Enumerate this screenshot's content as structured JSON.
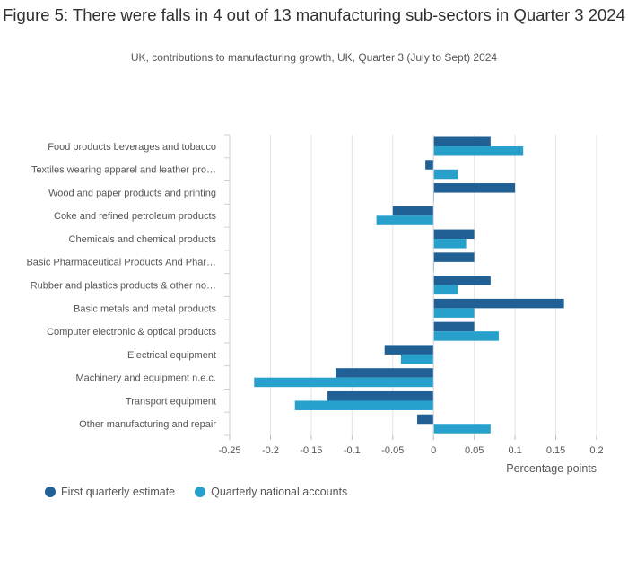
{
  "chart_data": {
    "type": "bar",
    "orientation": "horizontal",
    "title": "Figure 5: There were falls in 4 out of 13 manufacturing sub-sectors in Quarter 3 2024",
    "subtitle": "UK, contributions to manufacturing growth, UK, Quarter 3 (July to Sept) 2024",
    "xlabel": "Percentage points",
    "xlim": [
      -0.25,
      0.2
    ],
    "xticks": [
      "-0.25",
      "-0.2",
      "-0.15",
      "-0.1",
      "-0.05",
      "0",
      "0.05",
      "0.1",
      "0.15",
      "0.2"
    ],
    "grid": true,
    "legend_position": "bottom-left",
    "categories": [
      "Food products beverages and tobacco",
      "Textiles wearing apparel and leather pro…",
      "Wood and paper products and printing",
      "Coke and refined petroleum products",
      "Chemicals and chemical products",
      "Basic Pharmaceutical Products And Phar…",
      "Rubber and plastics products & other no…",
      "Basic metals and metal products",
      "Computer electronic & optical products",
      "Electrical equipment",
      "Machinery and equipment n.e.c.",
      "Transport equipment",
      "Other manufacturing and repair"
    ],
    "series": [
      {
        "name": "First quarterly estimate",
        "color": "#206095",
        "values": [
          0.07,
          -0.01,
          0.1,
          -0.05,
          0.05,
          0.05,
          0.07,
          0.16,
          0.05,
          -0.06,
          -0.12,
          -0.13,
          -0.02
        ]
      },
      {
        "name": "Quarterly national accounts",
        "color": "#27a0cc",
        "values": [
          0.11,
          0.03,
          0.0,
          -0.07,
          0.04,
          0.0,
          0.03,
          0.05,
          0.08,
          -0.04,
          -0.22,
          -0.17,
          0.07
        ]
      }
    ]
  }
}
